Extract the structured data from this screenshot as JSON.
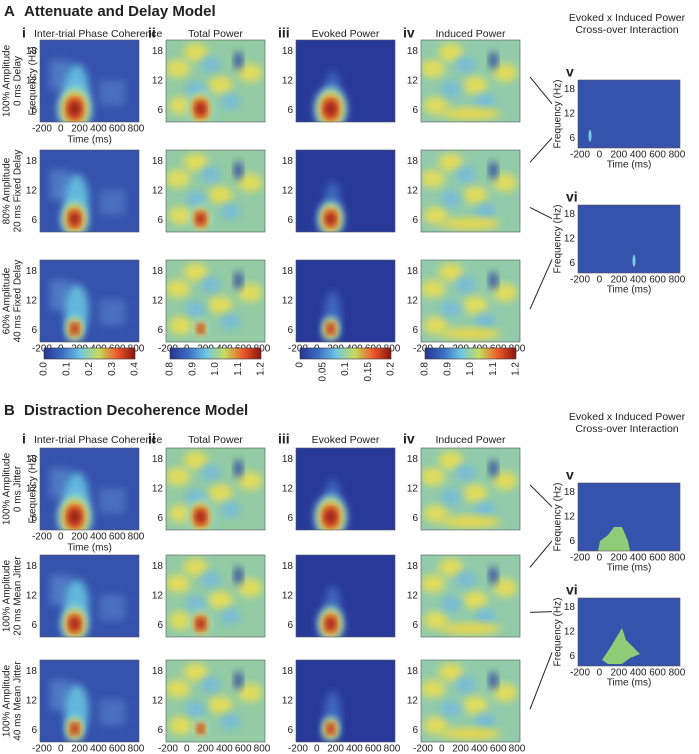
{
  "panels": [
    {
      "label": "A",
      "title": "Attenuate and Delay Model",
      "columns": [
        {
          "numeral": "i",
          "title": "Inter-trial Phase Coherence"
        },
        {
          "numeral": "ii",
          "title": "Total Power"
        },
        {
          "numeral": "iii",
          "title": "Evoked Power"
        },
        {
          "numeral": "iv",
          "title": "Induced Power"
        }
      ],
      "rows": [
        [
          "100% Amplitude",
          "0 ms Delay"
        ],
        [
          "80% Amplitude",
          "20 ms Fixed Delay"
        ],
        [
          "60% Amplitude",
          "40 ms Fixed Delay"
        ]
      ],
      "interaction": {
        "title": [
          "Evoked x Induced Power",
          "Cross-over Interaction"
        ],
        "numerals": [
          "v",
          "vi"
        ]
      }
    },
    {
      "label": "B",
      "title": "Distraction Decoherence Model",
      "columns": [
        {
          "numeral": "i",
          "title": "Inter-trial Phase Coherence"
        },
        {
          "numeral": "ii",
          "title": "Total Power"
        },
        {
          "numeral": "iii",
          "title": "Evoked Power"
        },
        {
          "numeral": "iv",
          "title": "Induced Power"
        }
      ],
      "rows": [
        [
          "100% Amplitude",
          "0 ms Jitter"
        ],
        [
          "100% Amplitude",
          "20 ms Mean Jitter"
        ],
        [
          "100% Amplitude",
          "40 ms Mean Jitter"
        ]
      ],
      "interaction": {
        "title": [
          "Evoked x Induced Power",
          "Cross-over Interaction"
        ],
        "numerals": [
          "v",
          "vi"
        ]
      }
    }
  ],
  "axes": {
    "y_label": "Frequency (Hz)",
    "x_label": "Time (ms)",
    "yticks": [
      "18",
      "12",
      "6"
    ],
    "xticks": [
      "-200",
      "0",
      "200",
      "400",
      "600",
      "800"
    ]
  },
  "colorbars": [
    {
      "ticks": [
        "0.0",
        "0.1",
        "0.2",
        "0.3",
        "0.4"
      ]
    },
    {
      "ticks": [
        "0.8",
        "0.9",
        "1.0",
        "1.1",
        "1.2"
      ]
    },
    {
      "ticks": [
        "0",
        "0.05",
        "0.1",
        "0.15",
        "0.2"
      ]
    },
    {
      "ticks": [
        "0.8",
        "0.9",
        "1.0",
        "1.1",
        "1.2"
      ]
    }
  ]
}
